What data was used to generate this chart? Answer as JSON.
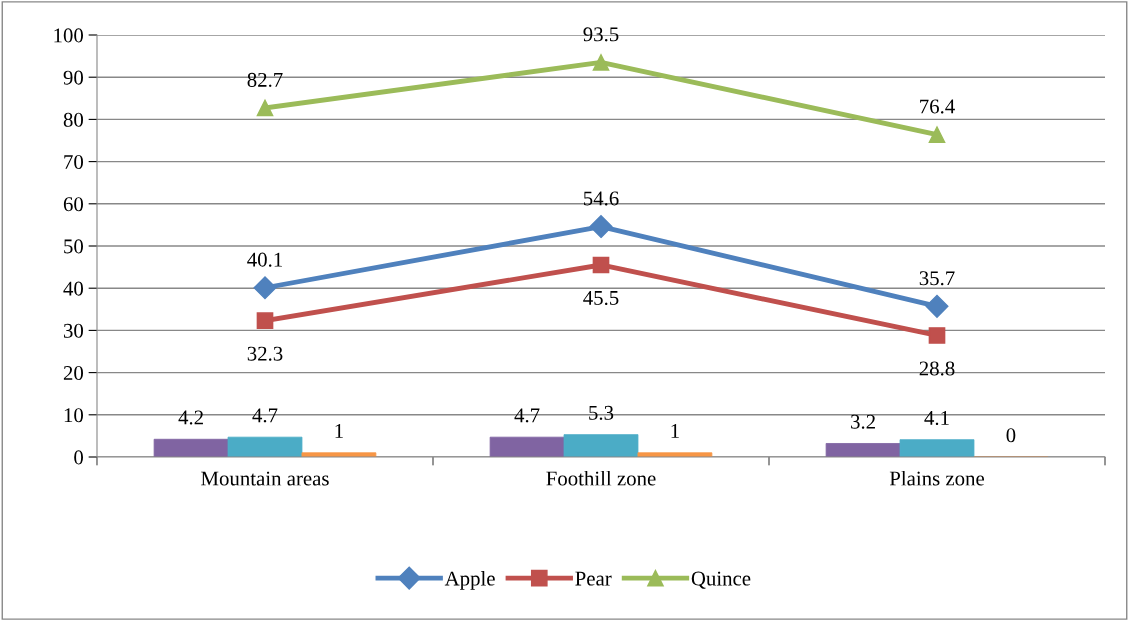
{
  "chart_data": {
    "type": "bar",
    "categories": [
      "Mountain areas",
      "Foothill zone",
      "Plains zone"
    ],
    "series": [
      {
        "color": "#8064a2",
        "values": [
          4.2,
          4.7,
          3.2
        ]
      },
      {
        "color": "#4bacc6",
        "values": [
          4.7,
          5.3,
          4.1
        ]
      },
      {
        "color": "#f79646",
        "values": [
          1,
          1,
          0
        ]
      },
      {
        "type": "line",
        "name": "Apple",
        "color": "#4f81bd",
        "marker": "diamond",
        "values": [
          40.1,
          54.6,
          35.7
        ]
      },
      {
        "type": "line",
        "name": "Pear",
        "color": "#c0504d",
        "marker": "square",
        "values": [
          32.3,
          45.5,
          28.8
        ]
      },
      {
        "type": "line",
        "name": "Quince",
        "color": "#9bbb59",
        "marker": "triangle",
        "values": [
          82.7,
          93.5,
          76.4
        ]
      }
    ],
    "ylim": [
      0,
      100
    ],
    "yticks": [
      0,
      10,
      20,
      30,
      40,
      50,
      60,
      70,
      80,
      90,
      100
    ],
    "grid": "y",
    "legend": "bottom",
    "data_labels": true,
    "line_style": "solid"
  }
}
